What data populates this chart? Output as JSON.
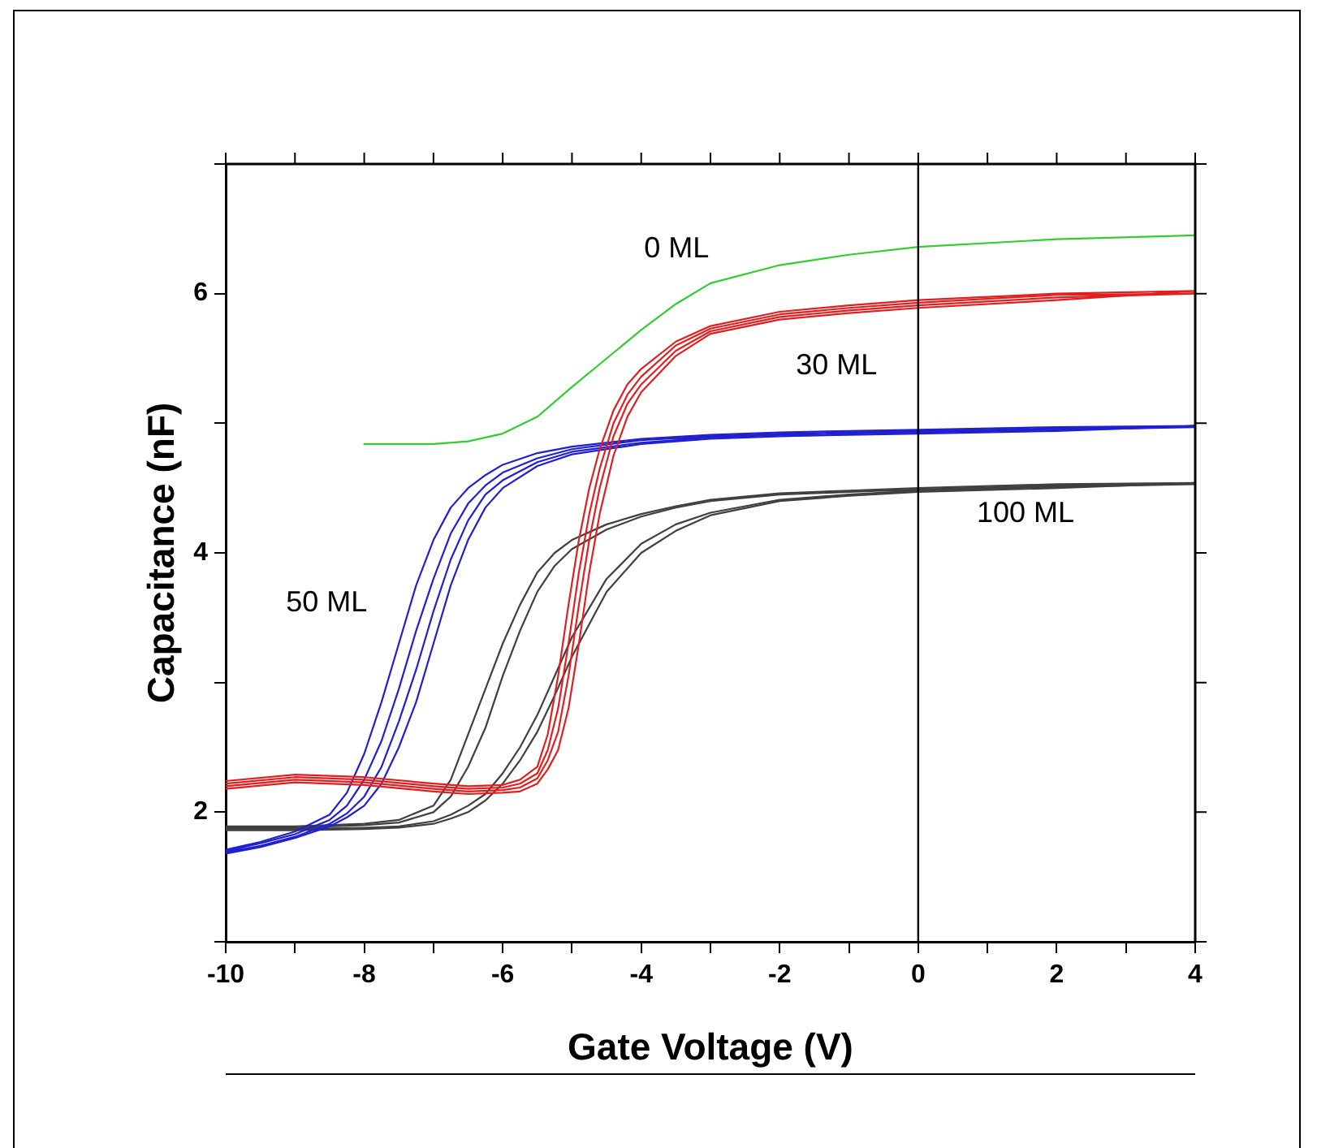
{
  "chart_data": {
    "type": "line",
    "xlabel": "Gate Voltage (V)",
    "ylabel": "Capacitance (nF)",
    "xlim": [
      -10,
      4
    ],
    "xticks": [
      -10,
      {
        "value": -9,
        "label": null
      },
      -8,
      {
        "value": -7,
        "label": null
      },
      -6,
      {
        "value": -5,
        "label": null
      },
      -4,
      {
        "value": -3,
        "label": null
      },
      -2,
      {
        "value": -1,
        "label": null
      },
      0,
      {
        "value": 1,
        "label": null
      },
      2,
      {
        "value": 3,
        "label": null
      },
      4
    ],
    "ylim": [
      1,
      7
    ],
    "yticks": [
      {
        "value": 1,
        "label": null
      },
      2,
      {
        "value": 3,
        "label": null
      },
      4,
      {
        "value": 5,
        "label": null
      },
      6,
      {
        "value": 7,
        "label": null
      }
    ],
    "grid": false,
    "legend": false,
    "marker": "none",
    "line_style": "solid",
    "ref_lines": [
      {
        "axis": "x",
        "value": 0,
        "color": "#000000"
      }
    ],
    "series": [
      {
        "name": "0 ML",
        "color": "#33cc33",
        "x": [
          -8,
          -7,
          -6.5,
          -6,
          -5.5,
          -5,
          -4.5,
          -4,
          -3.5,
          -3,
          -2,
          -1,
          0,
          2,
          4
        ],
        "values": [
          4.84,
          4.84,
          4.86,
          4.92,
          5.05,
          5.28,
          5.5,
          5.72,
          5.92,
          6.08,
          6.22,
          6.3,
          6.36,
          6.42,
          6.45
        ]
      },
      {
        "name": "30 ML",
        "color": "#e02020",
        "x": [
          -10,
          -9,
          -8,
          -7,
          -6.5,
          -6,
          -5.75,
          -5.5,
          -5.35,
          -5.2,
          -5.05,
          -4.9,
          -4.75,
          -4.6,
          -4.4,
          -4.2,
          -4,
          -3.5,
          -3,
          -2,
          -1,
          0,
          2,
          4,
          2,
          0,
          -1,
          -2,
          -3,
          -3.5,
          -4,
          -4.2,
          -4.4,
          -4.6,
          -4.75,
          -4.9,
          -5.05,
          -5.2,
          -5.35,
          -5.5,
          -5.75,
          -6,
          -6.5,
          -7,
          -8,
          -9,
          -10
        ],
        "values": [
          2.24,
          2.29,
          2.27,
          2.22,
          2.2,
          2.21,
          2.25,
          2.35,
          2.6,
          3.05,
          3.6,
          4.1,
          4.5,
          4.8,
          5.1,
          5.3,
          5.42,
          5.63,
          5.75,
          5.86,
          5.91,
          5.95,
          6.0,
          6.02,
          5.95,
          5.89,
          5.85,
          5.8,
          5.69,
          5.52,
          5.24,
          5.05,
          4.75,
          4.3,
          3.85,
          3.3,
          2.8,
          2.48,
          2.33,
          2.22,
          2.16,
          2.15,
          2.14,
          2.16,
          2.21,
          2.23,
          2.18
        ]
      },
      {
        "color": "#e02020",
        "x": [
          -10,
          -9,
          -8,
          -7,
          -6.5,
          -6,
          -5.75,
          -5.5,
          -5.35,
          -5.2,
          -5.05,
          -4.9,
          -4.75,
          -4.6,
          -4.4,
          -4.2,
          -4,
          -3.5,
          -3,
          -2,
          -1,
          0,
          2,
          4,
          2,
          0,
          -1,
          -2,
          -3,
          -3.5,
          -4,
          -4.2,
          -4.4,
          -4.6,
          -4.75,
          -4.9,
          -5.05,
          -5.2,
          -5.35,
          -5.5,
          -5.75,
          -6,
          -6.5,
          -7,
          -8,
          -9,
          -10
        ],
        "values": [
          2.22,
          2.27,
          2.25,
          2.2,
          2.18,
          2.19,
          2.22,
          2.3,
          2.48,
          2.8,
          3.3,
          3.85,
          4.3,
          4.65,
          5.0,
          5.22,
          5.36,
          5.6,
          5.73,
          5.84,
          5.89,
          5.93,
          5.99,
          6.0,
          5.97,
          5.91,
          5.87,
          5.82,
          5.71,
          5.56,
          5.3,
          5.15,
          4.9,
          4.5,
          4.1,
          3.6,
          3.05,
          2.62,
          2.4,
          2.26,
          2.19,
          2.17,
          2.16,
          2.18,
          2.23,
          2.25,
          2.2
        ]
      },
      {
        "name": "50 ML",
        "color": "#2020d0",
        "x": [
          -10,
          -9.5,
          -9,
          -8.5,
          -8.25,
          -8,
          -7.75,
          -7.5,
          -7.25,
          -7,
          -6.75,
          -6.5,
          -6.25,
          -6,
          -5.5,
          -5,
          -4,
          -3,
          -2,
          0,
          2,
          4,
          2,
          0,
          -2,
          -3,
          -4,
          -5,
          -5.5,
          -6,
          -6.25,
          -6.5,
          -6.75,
          -7,
          -7.25,
          -7.5,
          -7.75,
          -8,
          -8.25,
          -8.5,
          -9,
          -9.5,
          -10
        ],
        "values": [
          1.71,
          1.77,
          1.85,
          1.98,
          2.15,
          2.45,
          2.85,
          3.3,
          3.75,
          4.1,
          4.35,
          4.5,
          4.6,
          4.68,
          4.77,
          4.82,
          4.88,
          4.91,
          4.93,
          4.95,
          4.97,
          4.98,
          4.94,
          4.92,
          4.9,
          4.88,
          4.84,
          4.76,
          4.67,
          4.5,
          4.35,
          4.1,
          3.75,
          3.3,
          2.85,
          2.5,
          2.22,
          2.05,
          1.96,
          1.89,
          1.8,
          1.73,
          1.68
        ]
      },
      {
        "color": "#2020d0",
        "x": [
          -10,
          -9.5,
          -9,
          -8.5,
          -8.25,
          -8,
          -7.75,
          -7.5,
          -7.25,
          -7,
          -6.75,
          -6.5,
          -6.25,
          -6,
          -5.5,
          -5,
          -4,
          -3,
          -2,
          0,
          2,
          4,
          2,
          0,
          -2,
          -3,
          -4,
          -5,
          -5.5,
          -6,
          -6.25,
          -6.5,
          -6.75,
          -7,
          -7.25,
          -7.5,
          -7.75,
          -8,
          -8.25,
          -8.5,
          -9,
          -9.5,
          -10
        ],
        "values": [
          1.7,
          1.76,
          1.83,
          1.94,
          2.05,
          2.25,
          2.55,
          2.95,
          3.4,
          3.8,
          4.15,
          4.38,
          4.52,
          4.62,
          4.73,
          4.8,
          4.87,
          4.9,
          4.92,
          4.94,
          4.96,
          4.97,
          4.95,
          4.93,
          4.91,
          4.89,
          4.85,
          4.78,
          4.7,
          4.56,
          4.45,
          4.25,
          3.95,
          3.55,
          3.1,
          2.7,
          2.35,
          2.12,
          1.99,
          1.91,
          1.81,
          1.74,
          1.69
        ]
      },
      {
        "name": "100 ML",
        "color": "#404040",
        "x": [
          -10,
          -9,
          -8,
          -7.5,
          -7,
          -6.75,
          -6.5,
          -6.25,
          -6,
          -5.75,
          -5.5,
          -5.25,
          -5,
          -4.5,
          -4,
          -3.5,
          -3,
          -2,
          -1,
          0,
          2,
          4,
          2,
          0,
          -1,
          -2,
          -3,
          -3.5,
          -4,
          -4.5,
          -5,
          -5.25,
          -5.5,
          -5.75,
          -6,
          -6.25,
          -6.5,
          -6.75,
          -7,
          -7.5,
          -8,
          -9,
          -10
        ],
        "values": [
          1.89,
          1.89,
          1.91,
          1.94,
          2.05,
          2.25,
          2.6,
          2.95,
          3.3,
          3.6,
          3.85,
          4.0,
          4.1,
          4.22,
          4.3,
          4.36,
          4.41,
          4.46,
          4.48,
          4.5,
          4.53,
          4.54,
          4.5,
          4.47,
          4.44,
          4.4,
          4.29,
          4.17,
          4.0,
          3.7,
          3.2,
          2.9,
          2.62,
          2.4,
          2.22,
          2.09,
          2.0,
          1.95,
          1.91,
          1.88,
          1.87,
          1.86,
          1.86
        ]
      },
      {
        "color": "#404040",
        "x": [
          -10,
          -9,
          -8,
          -7.5,
          -7,
          -6.75,
          -6.5,
          -6.25,
          -6,
          -5.75,
          -5.5,
          -5.25,
          -5,
          -4.5,
          -4,
          -3.5,
          -3,
          -2,
          -1,
          0,
          2,
          4,
          2,
          0,
          -1,
          -2,
          -3,
          -3.5,
          -4,
          -4.5,
          -5,
          -5.25,
          -5.5,
          -5.75,
          -6,
          -6.25,
          -6.5,
          -6.75,
          -7,
          -7.5,
          -8,
          -9,
          -10
        ],
        "values": [
          1.88,
          1.88,
          1.9,
          1.92,
          2.0,
          2.12,
          2.35,
          2.65,
          3.05,
          3.4,
          3.7,
          3.9,
          4.03,
          4.18,
          4.28,
          4.35,
          4.4,
          4.45,
          4.47,
          4.49,
          4.52,
          4.53,
          4.51,
          4.48,
          4.45,
          4.41,
          4.31,
          4.22,
          4.07,
          3.8,
          3.35,
          3.05,
          2.75,
          2.5,
          2.3,
          2.14,
          2.05,
          1.98,
          1.93,
          1.89,
          1.88,
          1.87,
          1.87
        ]
      }
    ]
  }
}
